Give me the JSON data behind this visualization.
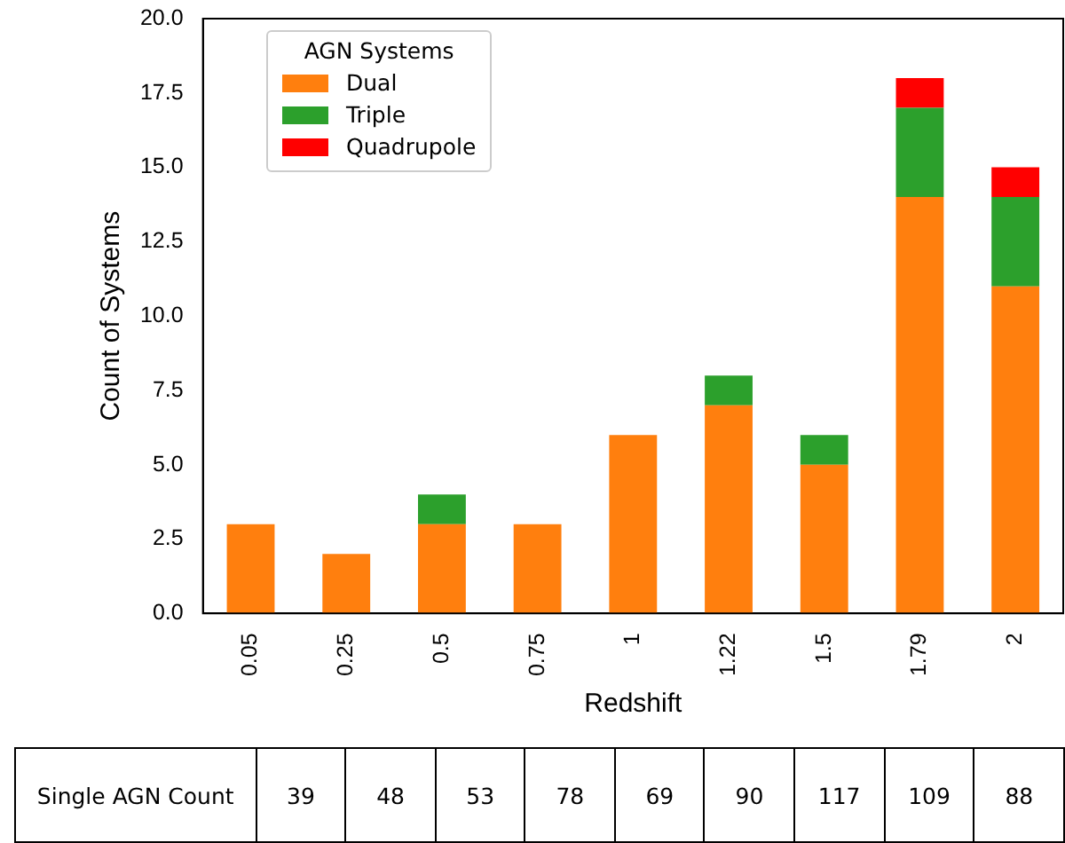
{
  "chart_data": [
    {
      "type": "bar",
      "stacked": true,
      "xlabel": "Redshift",
      "ylabel": "Count of Systems",
      "legend_title": "AGN Systems",
      "legend": "top left",
      "grid": false,
      "categories": [
        "0.05",
        "0.25",
        "0.5",
        "0.75",
        "1",
        "1.22",
        "1.5",
        "1.79",
        "2"
      ],
      "series": [
        {
          "name": "Dual",
          "color": "#ff7f0e",
          "values": [
            3,
            2,
            3,
            3,
            6,
            7,
            5,
            14,
            11
          ]
        },
        {
          "name": "Triple",
          "color": "#2ca02c",
          "values": [
            0,
            0,
            1,
            0,
            0,
            1,
            1,
            3,
            3
          ]
        },
        {
          "name": "Quadrupole",
          "color": "#ff0000",
          "values": [
            0,
            0,
            0,
            0,
            0,
            0,
            0,
            1,
            1
          ]
        }
      ],
      "ylim": [
        0,
        20
      ],
      "yticks": [
        {
          "value": 0,
          "label": "0.0"
        },
        {
          "value": 2.5,
          "label": "2.5"
        },
        {
          "value": 5,
          "label": "5.0"
        },
        {
          "value": 7.5,
          "label": "7.5"
        },
        {
          "value": 10,
          "label": "10.0"
        },
        {
          "value": 12.5,
          "label": "12.5"
        },
        {
          "value": 15,
          "label": "15.0"
        },
        {
          "value": 17.5,
          "label": "17.5"
        },
        {
          "value": 20,
          "label": "20.0"
        }
      ]
    },
    {
      "type": "other",
      "title": "Single AGN Count",
      "values": [
        39,
        48,
        53,
        78,
        69,
        90,
        117,
        109,
        88
      ],
      "data_labels": true
    }
  ]
}
